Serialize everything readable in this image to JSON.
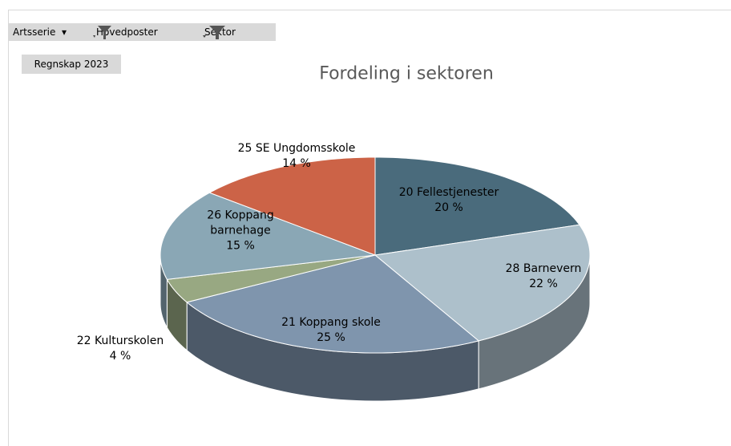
{
  "field_buttons": {
    "filters": [
      "Artsserie",
      "Hovedposter",
      "Sektor"
    ],
    "values_field": "Regnskap 2023"
  },
  "chart_data": {
    "type": "pie",
    "title": "Fordeling i sektoren",
    "categories": [
      "20 Fellestjenester",
      "28 Barnevern",
      "21 Koppang skole",
      "22 Kulturskolen",
      "26 Koppang barnehage",
      "25 SE Ungdomsskole"
    ],
    "values": [
      20,
      22,
      25,
      4,
      15,
      14
    ],
    "value_labels": [
      "20 %",
      "22 %",
      "25 %",
      "4 %",
      "15 %",
      "14 %"
    ],
    "colors": [
      "#4a6b7c",
      "#adc0cb",
      "#7f95ad",
      "#98a882",
      "#8aa7b5",
      "#cc6347"
    ]
  }
}
